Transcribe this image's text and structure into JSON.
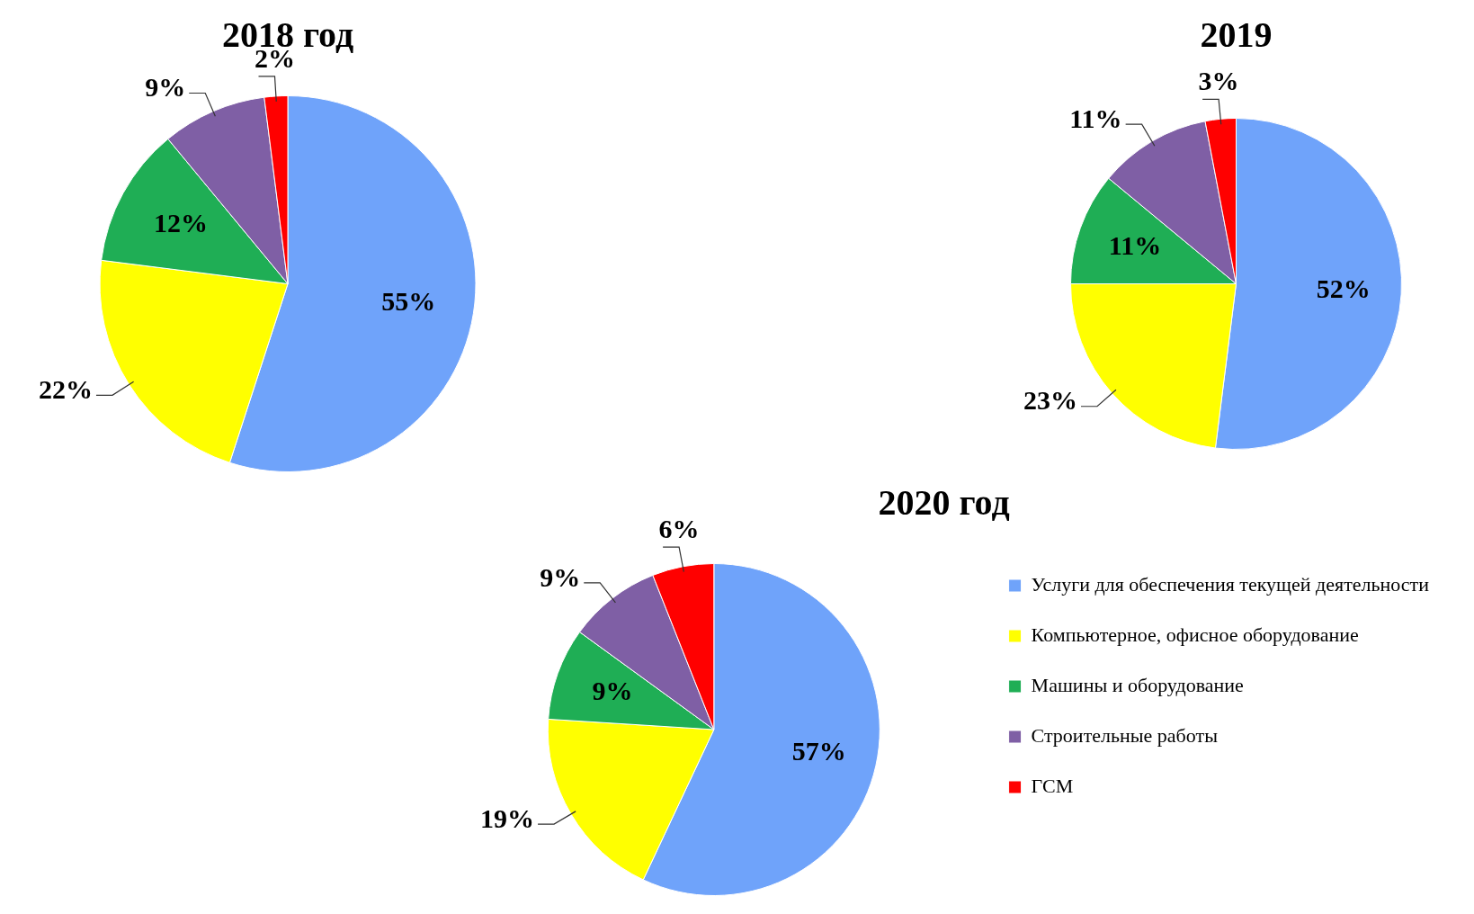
{
  "chart_data": [
    {
      "type": "pie",
      "title": "2018 год",
      "categories": [
        null,
        null,
        null,
        null,
        null
      ],
      "values": [
        55,
        22,
        12,
        9,
        2
      ],
      "value_labels": [
        "55%",
        "22%",
        "12%",
        "9%",
        "2%"
      ],
      "colors": [
        "#6fa3fa",
        "#ffff00",
        "#1fae55",
        "#7f5fa5",
        "#ff0000"
      ]
    },
    {
      "type": "pie",
      "title": "2019",
      "categories": [
        null,
        null,
        null,
        null,
        null
      ],
      "values": [
        52,
        23,
        11,
        11,
        3
      ],
      "value_labels": [
        "52%",
        "23%",
        "11%",
        "11%",
        "3%"
      ],
      "colors": [
        "#6fa3fa",
        "#ffff00",
        "#1fae55",
        "#7f5fa5",
        "#ff0000"
      ]
    },
    {
      "type": "pie",
      "title": "2020 год",
      "categories": [
        "Услуги для обеспечения текущей деятельности",
        "Компьютерное, офисное оборудование",
        "Машины и оборудование",
        "Строительные работы",
        "ГСМ"
      ],
      "values": [
        57,
        19,
        9,
        9,
        6
      ],
      "value_labels": [
        "57%",
        "19%",
        "9%",
        "9%",
        "6%"
      ],
      "colors": [
        "#6fa3fa",
        "#ffff00",
        "#1fae55",
        "#7f5fa5",
        "#ff0000"
      ],
      "legend": "right"
    }
  ]
}
